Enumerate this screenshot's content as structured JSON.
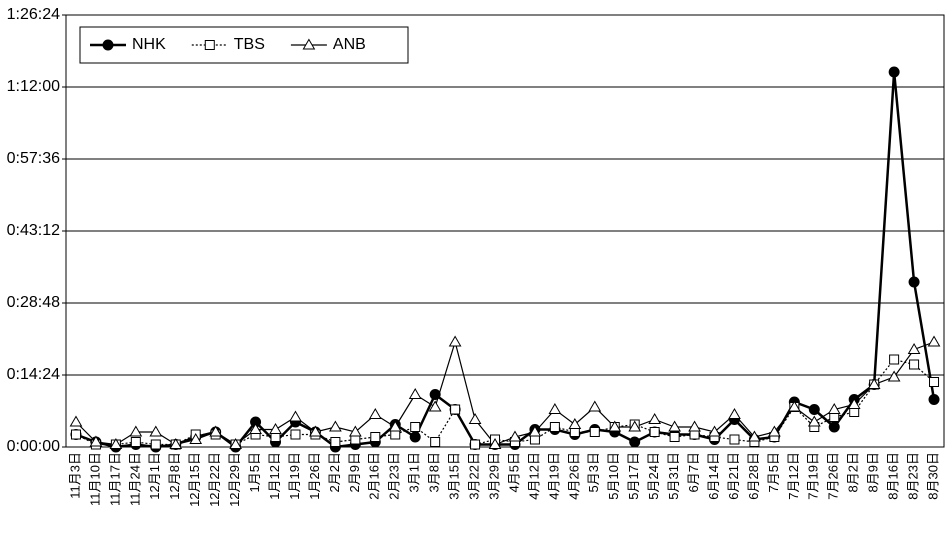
{
  "chart_data": {
    "type": "line",
    "categories": [
      "11月3日",
      "11月10日",
      "11月17日",
      "11月24日",
      "12月1日",
      "12月8日",
      "12月15日",
      "12月22日",
      "12月29日",
      "1月5日",
      "1月12日",
      "1月19日",
      "1月26日",
      "2月2日",
      "2月9日",
      "2月16日",
      "2月23日",
      "3月1日",
      "3月8日",
      "3月15日",
      "3月22日",
      "3月29日",
      "4月5日",
      "4月12日",
      "4月19日",
      "4月26日",
      "5月3日",
      "5月10日",
      "5月17日",
      "5月24日",
      "5月31日",
      "6月7日",
      "6月14日",
      "6月21日",
      "6月28日",
      "7月5日",
      "7月12日",
      "7月19日",
      "7月26日",
      "8月2日",
      "8月9日",
      "8月16日",
      "8月23日",
      "8月30日"
    ],
    "series": [
      {
        "name": "NHK",
        "color": "#000000",
        "marker": "circle",
        "dash": "solid",
        "values": [
          2.5,
          1,
          0,
          0.5,
          0,
          0.5,
          2,
          3,
          0,
          5,
          1,
          5,
          3,
          0,
          0.5,
          1,
          4.5,
          2,
          10.5,
          7.5,
          0.5,
          0.5,
          0.5,
          3.5,
          3.5,
          2.5,
          3.5,
          3,
          1,
          3,
          2.5,
          2.5,
          1.5,
          5.5,
          1.5,
          2,
          9,
          7.5,
          4,
          9.5,
          12.5,
          75,
          33,
          9.5
        ]
      },
      {
        "name": "TBS",
        "color": "#000000",
        "marker": "square",
        "dash": "dotted",
        "values": [
          2.5,
          0.5,
          0.5,
          1,
          0.5,
          0.5,
          2.5,
          2.5,
          0.5,
          2.5,
          2,
          2.5,
          2.5,
          1,
          1.5,
          2,
          2.5,
          4,
          1,
          7.5,
          0.5,
          1.5,
          1,
          1.5,
          4,
          3,
          3,
          4,
          4.5,
          3,
          2,
          2.5,
          2,
          1.5,
          1,
          2,
          8,
          4,
          6,
          7,
          12.5,
          17.5,
          16.5,
          13
        ]
      },
      {
        "name": "ANB",
        "color": "#000000",
        "marker": "triangle",
        "dash": "solid",
        "values": [
          5,
          1,
          0.5,
          3,
          3,
          0.5,
          1.5,
          3,
          0.5,
          3.5,
          3.5,
          6,
          3,
          4,
          3,
          6.5,
          4,
          10.5,
          8,
          21,
          5.5,
          0.5,
          2,
          3,
          7.5,
          4.5,
          8,
          4,
          4,
          5.5,
          4,
          4,
          3,
          6.5,
          2,
          3,
          8,
          5,
          7.5,
          8.5,
          12.5,
          14,
          19.5,
          21
        ]
      }
    ],
    "ylim": [
      0,
      86.4
    ],
    "yticks": [
      {
        "value": 0,
        "label": "0:00:00"
      },
      {
        "value": 14.4,
        "label": "0:14:24"
      },
      {
        "value": 28.8,
        "label": "0:28:48"
      },
      {
        "value": 43.2,
        "label": "0:43:12"
      },
      {
        "value": 57.6,
        "label": "0:57:36"
      },
      {
        "value": 72,
        "label": "1:12:00"
      },
      {
        "value": 86.4,
        "label": "1:26:24"
      }
    ],
    "grid": true,
    "legend": "top-left"
  }
}
